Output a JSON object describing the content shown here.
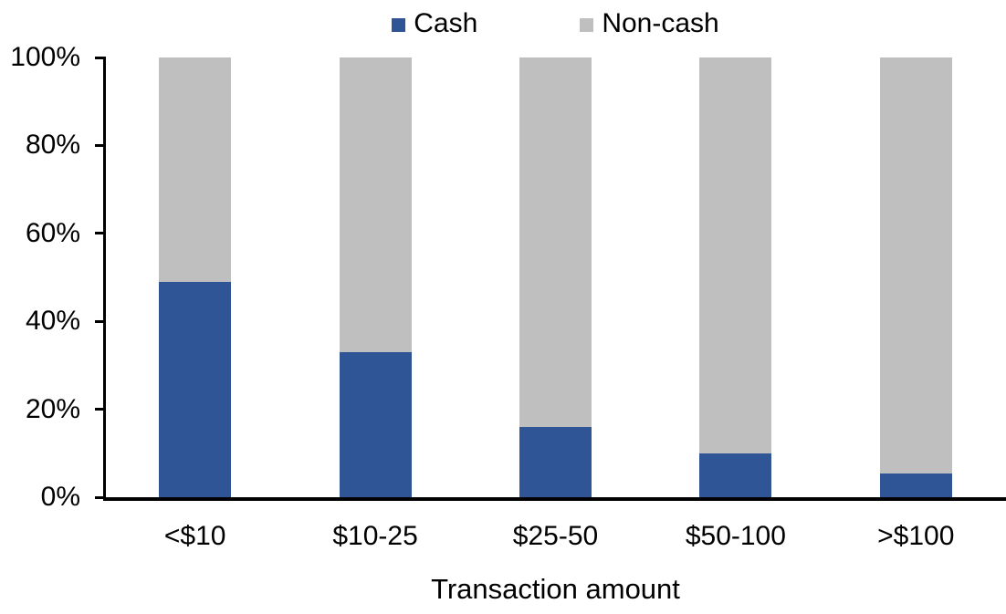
{
  "chart_data": {
    "type": "bar",
    "subtype": "stacked-100-percent",
    "title": "",
    "xlabel": "Transaction amount",
    "ylabel": "",
    "categories": [
      "<$10",
      "$10-25",
      "$25-50",
      "$50-100",
      ">$100"
    ],
    "series": [
      {
        "name": "Cash",
        "color": "#2F5597",
        "values": [
          49,
          33,
          16,
          10,
          5.5
        ]
      },
      {
        "name": "Non-cash",
        "color": "#BFBFBF",
        "values": [
          51,
          67,
          84,
          90,
          94.5
        ]
      }
    ],
    "ylim": [
      0,
      100
    ],
    "ytick_values": [
      0,
      20,
      40,
      60,
      80,
      100
    ],
    "yticks": [
      "0%",
      "20%",
      "40%",
      "60%",
      "80%",
      "100%"
    ],
    "grid": false,
    "legend_position": "top-center",
    "axis_color": "#000000",
    "background_color": "#FFFFFF"
  }
}
